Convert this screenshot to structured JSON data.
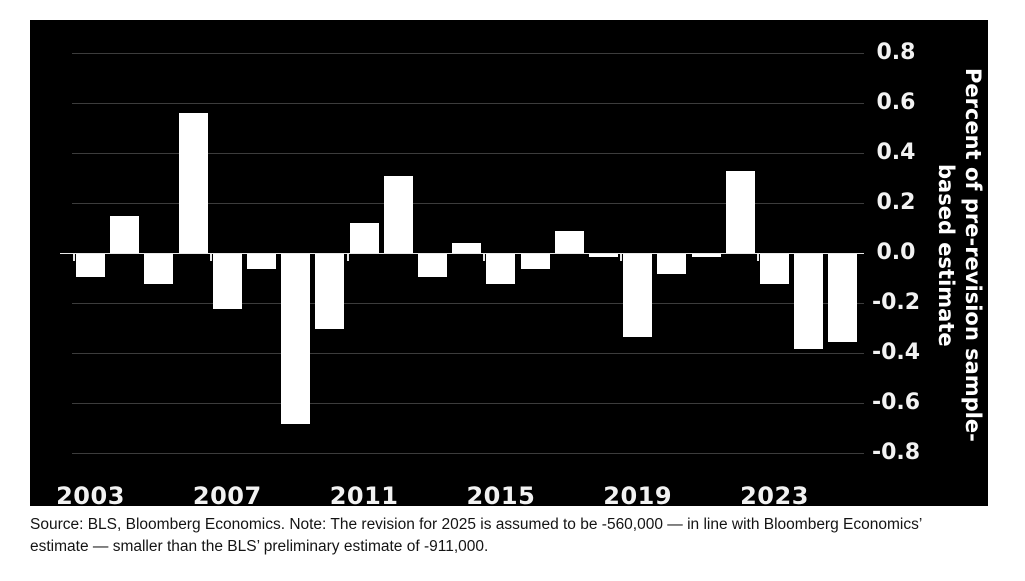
{
  "chart_data": {
    "type": "bar",
    "categories": [
      "2003",
      "2004",
      "2005",
      "2006",
      "2007",
      "2008",
      "2009",
      "2010",
      "2011",
      "2012",
      "2013",
      "2014",
      "2015",
      "2016",
      "2017",
      "2018",
      "2019",
      "2020",
      "2021",
      "2022",
      "2023",
      "2024",
      "2025"
    ],
    "values": [
      -0.09,
      0.15,
      -0.12,
      0.56,
      -0.22,
      -0.06,
      -0.68,
      -0.3,
      0.12,
      0.31,
      -0.09,
      0.04,
      -0.12,
      -0.06,
      0.09,
      -0.01,
      -0.33,
      -0.08,
      -0.01,
      0.33,
      -0.12,
      -0.38,
      -0.35
    ],
    "title": "",
    "xlabel": "",
    "ylabel": "Percent of pre-revision sample-based estimate",
    "ylabel_lines": [
      "Percent of pre-revision sample-",
      "based estimate"
    ],
    "x_tick_labels": [
      "2003",
      "2007",
      "2011",
      "2015",
      "2019",
      "2023"
    ],
    "y_tick_levels": [
      0.8,
      0.6,
      0.4,
      0.2,
      0.0,
      -0.2,
      -0.4,
      -0.6,
      -0.8
    ],
    "y_tick_labels": [
      "0.8",
      "0.6",
      "0.4",
      "0.2",
      "0.0",
      "-0.2",
      "-0.4",
      "-0.6",
      "-0.8"
    ],
    "ylim": [
      -0.9,
      0.9
    ],
    "grid": true,
    "legend": "none",
    "bar_color": "#ffffff",
    "background_color": "#000000",
    "gridline_color": "#3c3c3c",
    "label_color": "#f2f2f2"
  },
  "footer": {
    "source_note_line1": "Source: BLS, Bloomberg Economics. Note: The revision for 2025 is assumed to be -560,000 — in line with Bloomberg Economics’",
    "source_note_line2": "estimate — smaller than the BLS’ preliminary estimate of -911,000."
  }
}
